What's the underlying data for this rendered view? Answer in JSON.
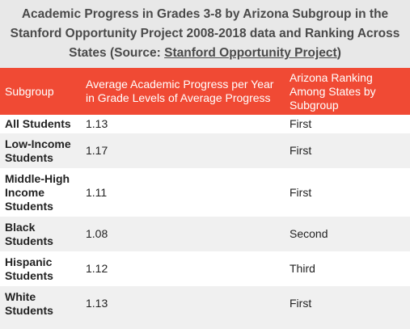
{
  "caption": {
    "text_before_link": "Academic Progress in Grades 3-8 by Arizona Subgroup in the Stanford Opportunity Project 2008-2018 data and Ranking Across States (Source: ",
    "link_text": "Stanford Opportunity Project",
    "text_after_link": ")"
  },
  "table": {
    "headers": [
      "Subgroup",
      "Average Academic Progress per Year in Grade Levels of Average Progress",
      "Arizona Ranking Among States by Subgroup"
    ],
    "rows": [
      {
        "subgroup": "All Students",
        "progress": "1.13",
        "ranking": "First"
      },
      {
        "subgroup": "Low-Income Students",
        "progress": "1.17",
        "ranking": "First"
      },
      {
        "subgroup": "Middle-High Income Students",
        "progress": "1.11",
        "ranking": "First"
      },
      {
        "subgroup": "Black Students",
        "progress": "1.08",
        "ranking": "Second"
      },
      {
        "subgroup": "Hispanic Students",
        "progress": "1.12",
        "ranking": "Third"
      },
      {
        "subgroup": "White Students",
        "progress": "1.13",
        "ranking": "First"
      }
    ]
  },
  "colors": {
    "header_background": "#f04a34",
    "caption_background": "#e8e8e8",
    "stripe_background": "#f0f0f0"
  }
}
